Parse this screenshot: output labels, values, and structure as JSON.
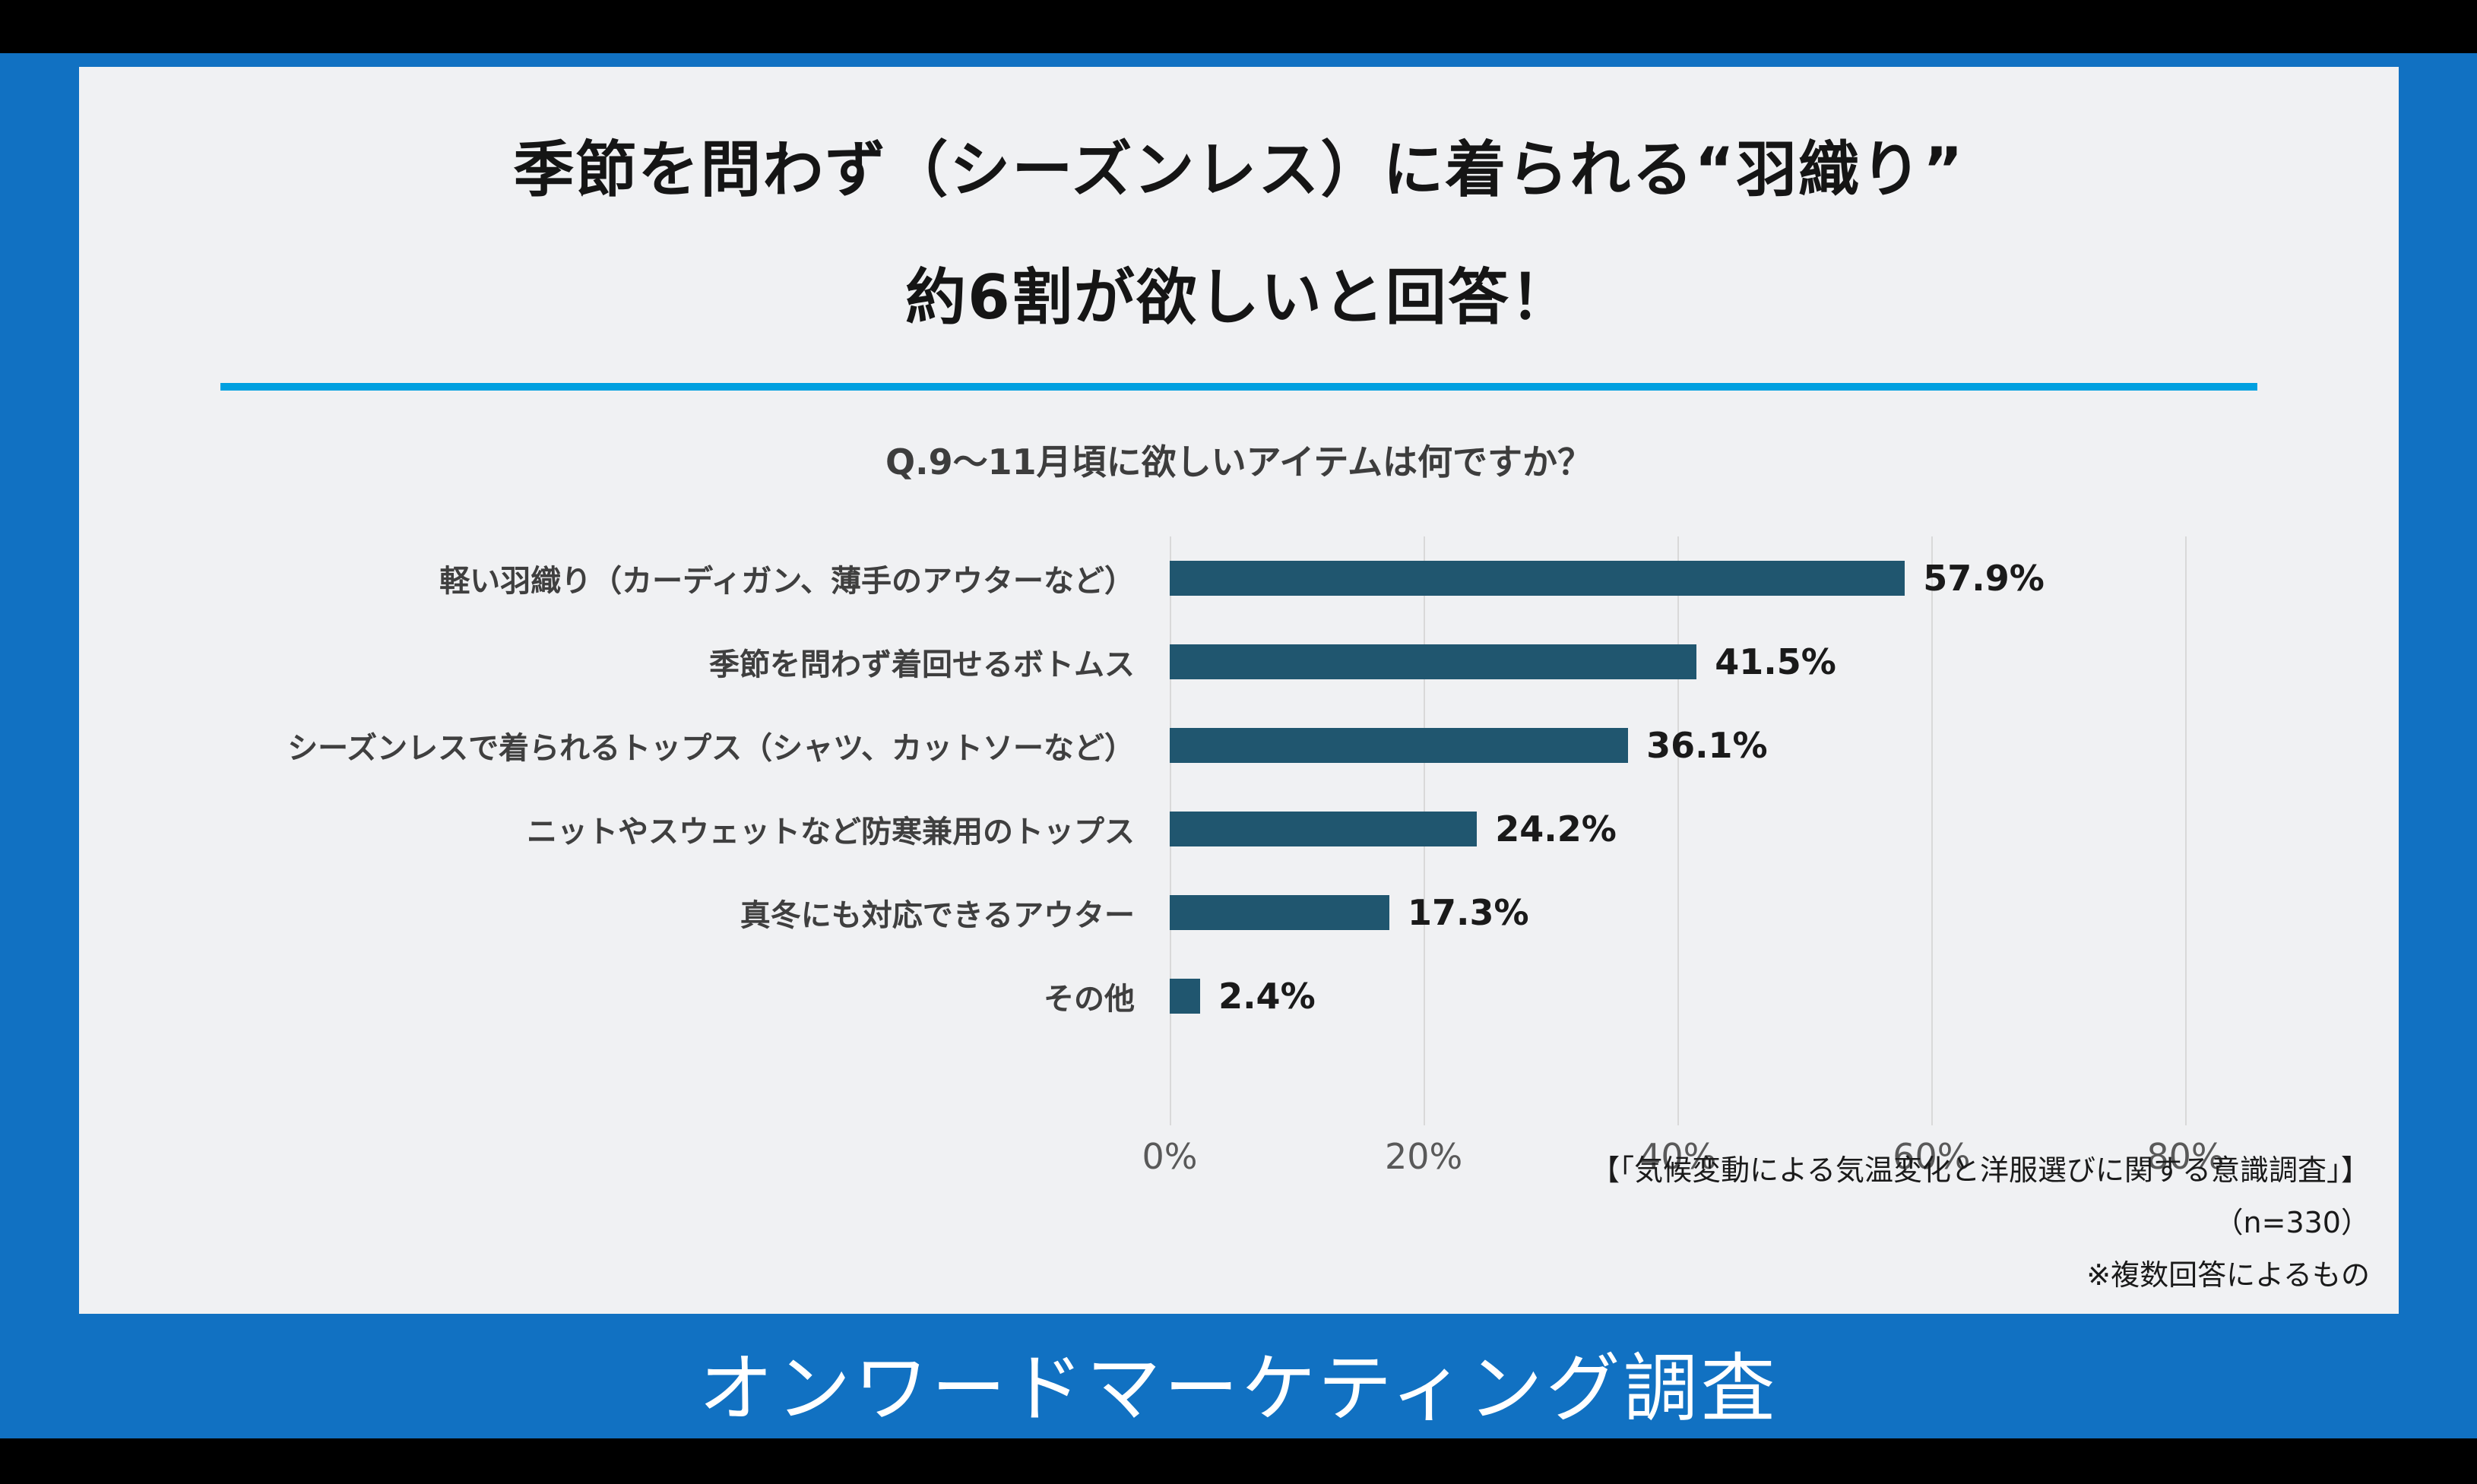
{
  "card": {
    "title_line1": "季節を問わず（シーズンレス）に着られる“羽織り”",
    "title_line2": "約6割が欲しいと回答！",
    "question": "Q.9～11月頃に欲しいアイテムは何ですか？",
    "notes": [
      "【「気候変動による気温変化と洋服選びに関する意識調査」】",
      "（n=330）",
      "※複数回答によるもの"
    ]
  },
  "banner": {
    "text": "オンワードマーケティング調査"
  },
  "colors": {
    "background_blue": "#1171C2",
    "card_bg": "#F0F1F3",
    "divider": "#00A0E0",
    "bar": "#20566F"
  },
  "chart_data": {
    "type": "bar",
    "orientation": "horizontal",
    "title": "Q.9～11月頃に欲しいアイテムは何ですか？",
    "categories": [
      "軽い羽織り（カーディガン、薄手のアウターなど）",
      "季節を問わず着回せるボトムス",
      "シーズンレスで着られるトップス（シャツ、カットソーなど）",
      "ニットやスウェットなど防寒兼用のトップス",
      "真冬にも対応できるアウター",
      "その他"
    ],
    "values": [
      57.9,
      41.5,
      36.1,
      24.2,
      17.3,
      2.4
    ],
    "value_labels": [
      "57.9%",
      "41.5%",
      "36.1%",
      "24.2%",
      "17.3%",
      "2.4%"
    ],
    "x_ticks": [
      0,
      20,
      40,
      60,
      80
    ],
    "x_tick_labels": [
      "0%",
      "20%",
      "40%",
      "60%",
      "80%"
    ],
    "xlim": [
      0,
      80
    ],
    "grid": true,
    "legend": false
  }
}
